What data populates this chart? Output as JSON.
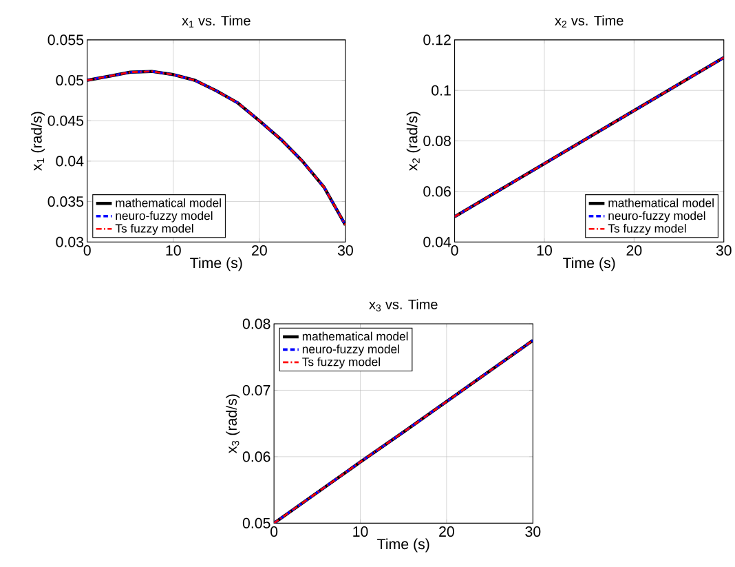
{
  "chart_data": [
    {
      "type": "line",
      "title": "x$_{1}$ vs. Time",
      "xlabel": "Time (s)",
      "ylabel": "x$_{1}$ (rad/s)",
      "x": [
        0,
        2.5,
        5,
        7.5,
        10,
        12.5,
        15,
        17.5,
        20,
        22.5,
        25,
        27.5,
        30
      ],
      "series": [
        {
          "name": "mathematical model",
          "color": "#000000",
          "line_style": "solid",
          "values": [
            0.05,
            0.0505,
            0.051,
            0.0511,
            0.0507,
            0.05,
            0.0487,
            0.0472,
            0.045,
            0.0427,
            0.04,
            0.0368,
            0.0321
          ]
        },
        {
          "name": "neuro-fuzzy model",
          "color": "#0000ff",
          "line_style": "dashed",
          "values": [
            0.05,
            0.0505,
            0.051,
            0.0511,
            0.0507,
            0.05,
            0.0487,
            0.0472,
            0.045,
            0.0427,
            0.04,
            0.0368,
            0.0321
          ]
        },
        {
          "name": "Ts fuzzy model",
          "color": "#ff0000",
          "line_style": "dashdot",
          "values": [
            0.05,
            0.0505,
            0.051,
            0.0511,
            0.0507,
            0.05,
            0.0487,
            0.0472,
            0.045,
            0.0427,
            0.04,
            0.0368,
            0.0321
          ]
        }
      ],
      "xlim": [
        0,
        30
      ],
      "xticks": [
        0,
        10,
        20,
        30
      ],
      "ylim": [
        0.03,
        0.055
      ],
      "yticks": [
        0.03,
        0.035,
        0.04,
        0.045,
        0.05,
        0.055
      ],
      "grid": true,
      "legend": "bottom left"
    },
    {
      "type": "line",
      "title": "x$_{2}$ vs. Time",
      "xlabel": "Time (s)",
      "ylabel": "x$_{2}$ (rad/s)",
      "x": [
        0,
        5,
        10,
        15,
        20,
        25,
        30
      ],
      "series": [
        {
          "name": "mathematical model",
          "color": "#000000",
          "line_style": "solid",
          "values": [
            0.05,
            0.0605,
            0.071,
            0.0815,
            0.092,
            0.1025,
            0.113
          ]
        },
        {
          "name": "neuro-fuzzy model",
          "color": "#0000ff",
          "line_style": "dashed",
          "values": [
            0.05,
            0.0605,
            0.071,
            0.0815,
            0.092,
            0.1025,
            0.113
          ]
        },
        {
          "name": "Ts fuzzy model",
          "color": "#ff0000",
          "line_style": "dashdot",
          "values": [
            0.05,
            0.0605,
            0.071,
            0.0815,
            0.092,
            0.1025,
            0.113
          ]
        }
      ],
      "xlim": [
        0,
        30
      ],
      "xticks": [
        0,
        10,
        20,
        30
      ],
      "ylim": [
        0.04,
        0.12
      ],
      "yticks": [
        0.04,
        0.06,
        0.08,
        0.1,
        0.12
      ],
      "grid": true,
      "legend": "bottom right"
    },
    {
      "type": "line",
      "title": "x$_{3}$ vs. Time",
      "xlabel": "Time (s)",
      "ylabel": "x$_{3}$ (rad/s)",
      "x": [
        0,
        5,
        10,
        15,
        20,
        25,
        30
      ],
      "series": [
        {
          "name": "mathematical model",
          "color": "#000000",
          "line_style": "solid",
          "values": [
            0.05,
            0.0546,
            0.0592,
            0.0637,
            0.0683,
            0.0729,
            0.0775
          ]
        },
        {
          "name": "neuro-fuzzy model",
          "color": "#0000ff",
          "line_style": "dashed",
          "values": [
            0.05,
            0.0546,
            0.0592,
            0.0637,
            0.0683,
            0.0729,
            0.0775
          ]
        },
        {
          "name": "Ts fuzzy model",
          "color": "#ff0000",
          "line_style": "dashdot",
          "values": [
            0.05,
            0.0546,
            0.0592,
            0.0637,
            0.0683,
            0.0729,
            0.0775
          ]
        }
      ],
      "xlim": [
        0,
        30
      ],
      "xticks": [
        0,
        10,
        20,
        30
      ],
      "ylim": [
        0.05,
        0.08
      ],
      "yticks": [
        0.05,
        0.06,
        0.07,
        0.08
      ],
      "grid": true,
      "legend": "top left"
    }
  ]
}
